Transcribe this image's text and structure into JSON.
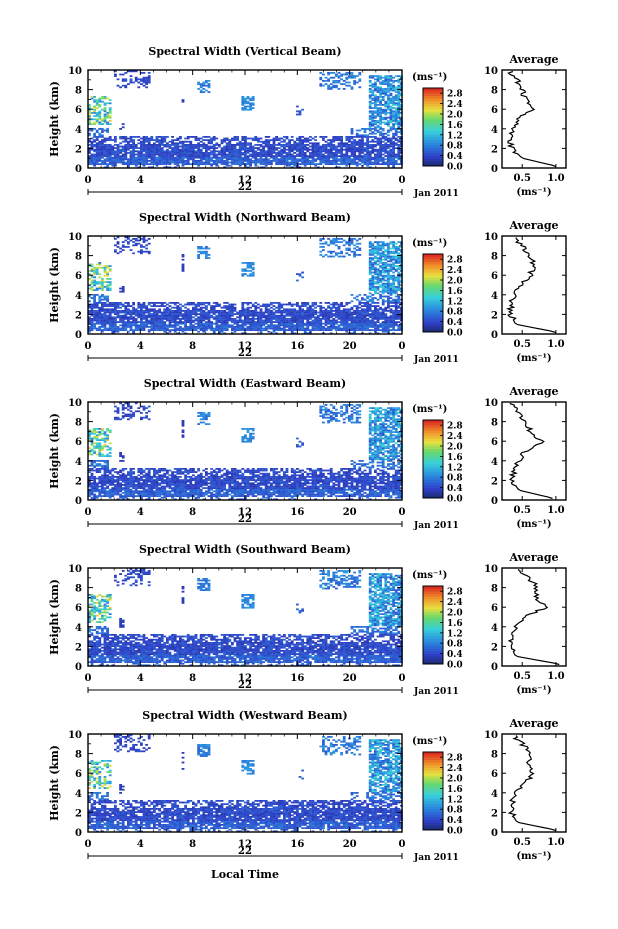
{
  "figure": {
    "date_label": "Jan 2011",
    "x_label": "Local Time",
    "day_label": "22"
  },
  "chart_data": [
    {
      "type": "heatmap",
      "title": "Spectral Width (Vertical Beam)",
      "ylabel": "Height (km)",
      "xlabel": "",
      "x_ticks": [
        "0",
        "4",
        "8",
        "12",
        "16",
        "20",
        "0"
      ],
      "y_ticks": [
        "0",
        "2",
        "4",
        "6",
        "8",
        "10"
      ],
      "xlim": [
        0,
        24
      ],
      "ylim": [
        0,
        10
      ],
      "colorbar": {
        "unit": "(ms⁻¹)",
        "ticks": [
          "0.0",
          "0.4",
          "0.8",
          "1.2",
          "1.6",
          "2.0",
          "2.4",
          "2.8"
        ],
        "range": [
          0,
          3.0
        ]
      },
      "profile": {
        "title": "Average",
        "xlabel": "(ms⁻¹)",
        "x_ticks": [
          "0.5",
          "1.0"
        ],
        "xlim": [
          0.2,
          1.15
        ],
        "heights": [
          0.2,
          1.0,
          2.0,
          3.0,
          4.0,
          5.0,
          5.8,
          6.0,
          6.5,
          7.0,
          8.0,
          9.0,
          9.8
        ],
        "values": [
          1.0,
          0.5,
          0.35,
          0.32,
          0.36,
          0.45,
          0.6,
          0.72,
          0.58,
          0.55,
          0.5,
          0.42,
          0.32
        ]
      }
    },
    {
      "type": "heatmap",
      "title": "Spectral Width (Northward Beam)",
      "ylabel": "Height (km)",
      "xlabel": "",
      "x_ticks": [
        "0",
        "4",
        "8",
        "12",
        "16",
        "20",
        "0"
      ],
      "y_ticks": [
        "0",
        "2",
        "4",
        "6",
        "8",
        "10"
      ],
      "xlim": [
        0,
        24
      ],
      "ylim": [
        0,
        10
      ],
      "colorbar": {
        "unit": "(ms⁻¹)",
        "ticks": [
          "0.0",
          "0.4",
          "0.8",
          "1.2",
          "1.6",
          "2.0",
          "2.4",
          "2.8"
        ],
        "range": [
          0,
          3.0
        ]
      },
      "profile": {
        "title": "Average",
        "xlabel": "(ms⁻¹)",
        "x_ticks": [
          "0.5",
          "1.0"
        ],
        "xlim": [
          0.2,
          1.15
        ],
        "heights": [
          0.2,
          1.0,
          2.0,
          3.0,
          4.0,
          5.0,
          6.0,
          7.0,
          8.0,
          9.0,
          9.8
        ],
        "values": [
          1.0,
          0.4,
          0.33,
          0.33,
          0.38,
          0.48,
          0.62,
          0.68,
          0.62,
          0.5,
          0.38
        ]
      }
    },
    {
      "type": "heatmap",
      "title": "Spectral Width (Eastward Beam)",
      "ylabel": "Height (km)",
      "xlabel": "",
      "x_ticks": [
        "0",
        "4",
        "8",
        "12",
        "16",
        "20",
        "0"
      ],
      "y_ticks": [
        "0",
        "2",
        "4",
        "6",
        "8",
        "10"
      ],
      "xlim": [
        0,
        24
      ],
      "ylim": [
        0,
        10
      ],
      "colorbar": {
        "unit": "(ms⁻¹)",
        "ticks": [
          "0.0",
          "0.4",
          "0.8",
          "1.2",
          "1.6",
          "2.0",
          "2.4",
          "2.8"
        ],
        "range": [
          0,
          3.0
        ]
      },
      "profile": {
        "title": "Average",
        "xlabel": "(ms⁻¹)",
        "x_ticks": [
          "0.5",
          "1.0"
        ],
        "xlim": [
          0.2,
          1.15
        ],
        "heights": [
          0.2,
          1.0,
          2.0,
          3.0,
          4.0,
          5.0,
          6.0,
          7.0,
          8.0,
          9.0,
          9.8
        ],
        "values": [
          0.95,
          0.45,
          0.35,
          0.38,
          0.45,
          0.55,
          0.8,
          0.62,
          0.55,
          0.45,
          0.35
        ]
      }
    },
    {
      "type": "heatmap",
      "title": "Spectral Width (Southward Beam)",
      "ylabel": "Height (km)",
      "xlabel": "",
      "x_ticks": [
        "0",
        "4",
        "8",
        "12",
        "16",
        "20",
        "0"
      ],
      "y_ticks": [
        "0",
        "2",
        "4",
        "6",
        "8",
        "10"
      ],
      "xlim": [
        0,
        24
      ],
      "ylim": [
        0,
        10
      ],
      "colorbar": {
        "unit": "(ms⁻¹)",
        "ticks": [
          "0.0",
          "0.4",
          "0.8",
          "1.2",
          "1.6",
          "2.0",
          "2.4",
          "2.8"
        ],
        "range": [
          0,
          3.0
        ]
      },
      "profile": {
        "title": "Average",
        "xlabel": "(ms⁻¹)",
        "x_ticks": [
          "0.5",
          "1.0"
        ],
        "xlim": [
          0.2,
          1.15
        ],
        "heights": [
          0.2,
          1.0,
          2.0,
          3.0,
          4.0,
          5.0,
          6.0,
          7.0,
          8.0,
          9.0,
          9.8
        ],
        "values": [
          1.05,
          0.4,
          0.33,
          0.34,
          0.4,
          0.55,
          0.85,
          0.7,
          0.72,
          0.6,
          0.4
        ]
      }
    },
    {
      "type": "heatmap",
      "title": "Spectral Width (Westward Beam)",
      "ylabel": "Height (km)",
      "xlabel": "Local Time",
      "x_ticks": [
        "0",
        "4",
        "8",
        "12",
        "16",
        "20",
        "0"
      ],
      "y_ticks": [
        "0",
        "2",
        "4",
        "6",
        "8",
        "10"
      ],
      "xlim": [
        0,
        24
      ],
      "ylim": [
        0,
        10
      ],
      "colorbar": {
        "unit": "(ms⁻¹)",
        "ticks": [
          "0.0",
          "0.4",
          "0.8",
          "1.2",
          "1.6",
          "2.0",
          "2.4",
          "2.8"
        ],
        "range": [
          0,
          3.0
        ]
      },
      "profile": {
        "title": "Average",
        "xlabel": "(ms⁻¹)",
        "x_ticks": [
          "0.5",
          "1.0"
        ],
        "xlim": [
          0.2,
          1.15
        ],
        "heights": [
          0.2,
          1.0,
          2.0,
          3.0,
          4.0,
          5.0,
          6.0,
          7.0,
          8.0,
          9.0,
          9.8
        ],
        "values": [
          1.0,
          0.42,
          0.34,
          0.35,
          0.42,
          0.55,
          0.66,
          0.6,
          0.62,
          0.5,
          0.38
        ]
      }
    }
  ]
}
